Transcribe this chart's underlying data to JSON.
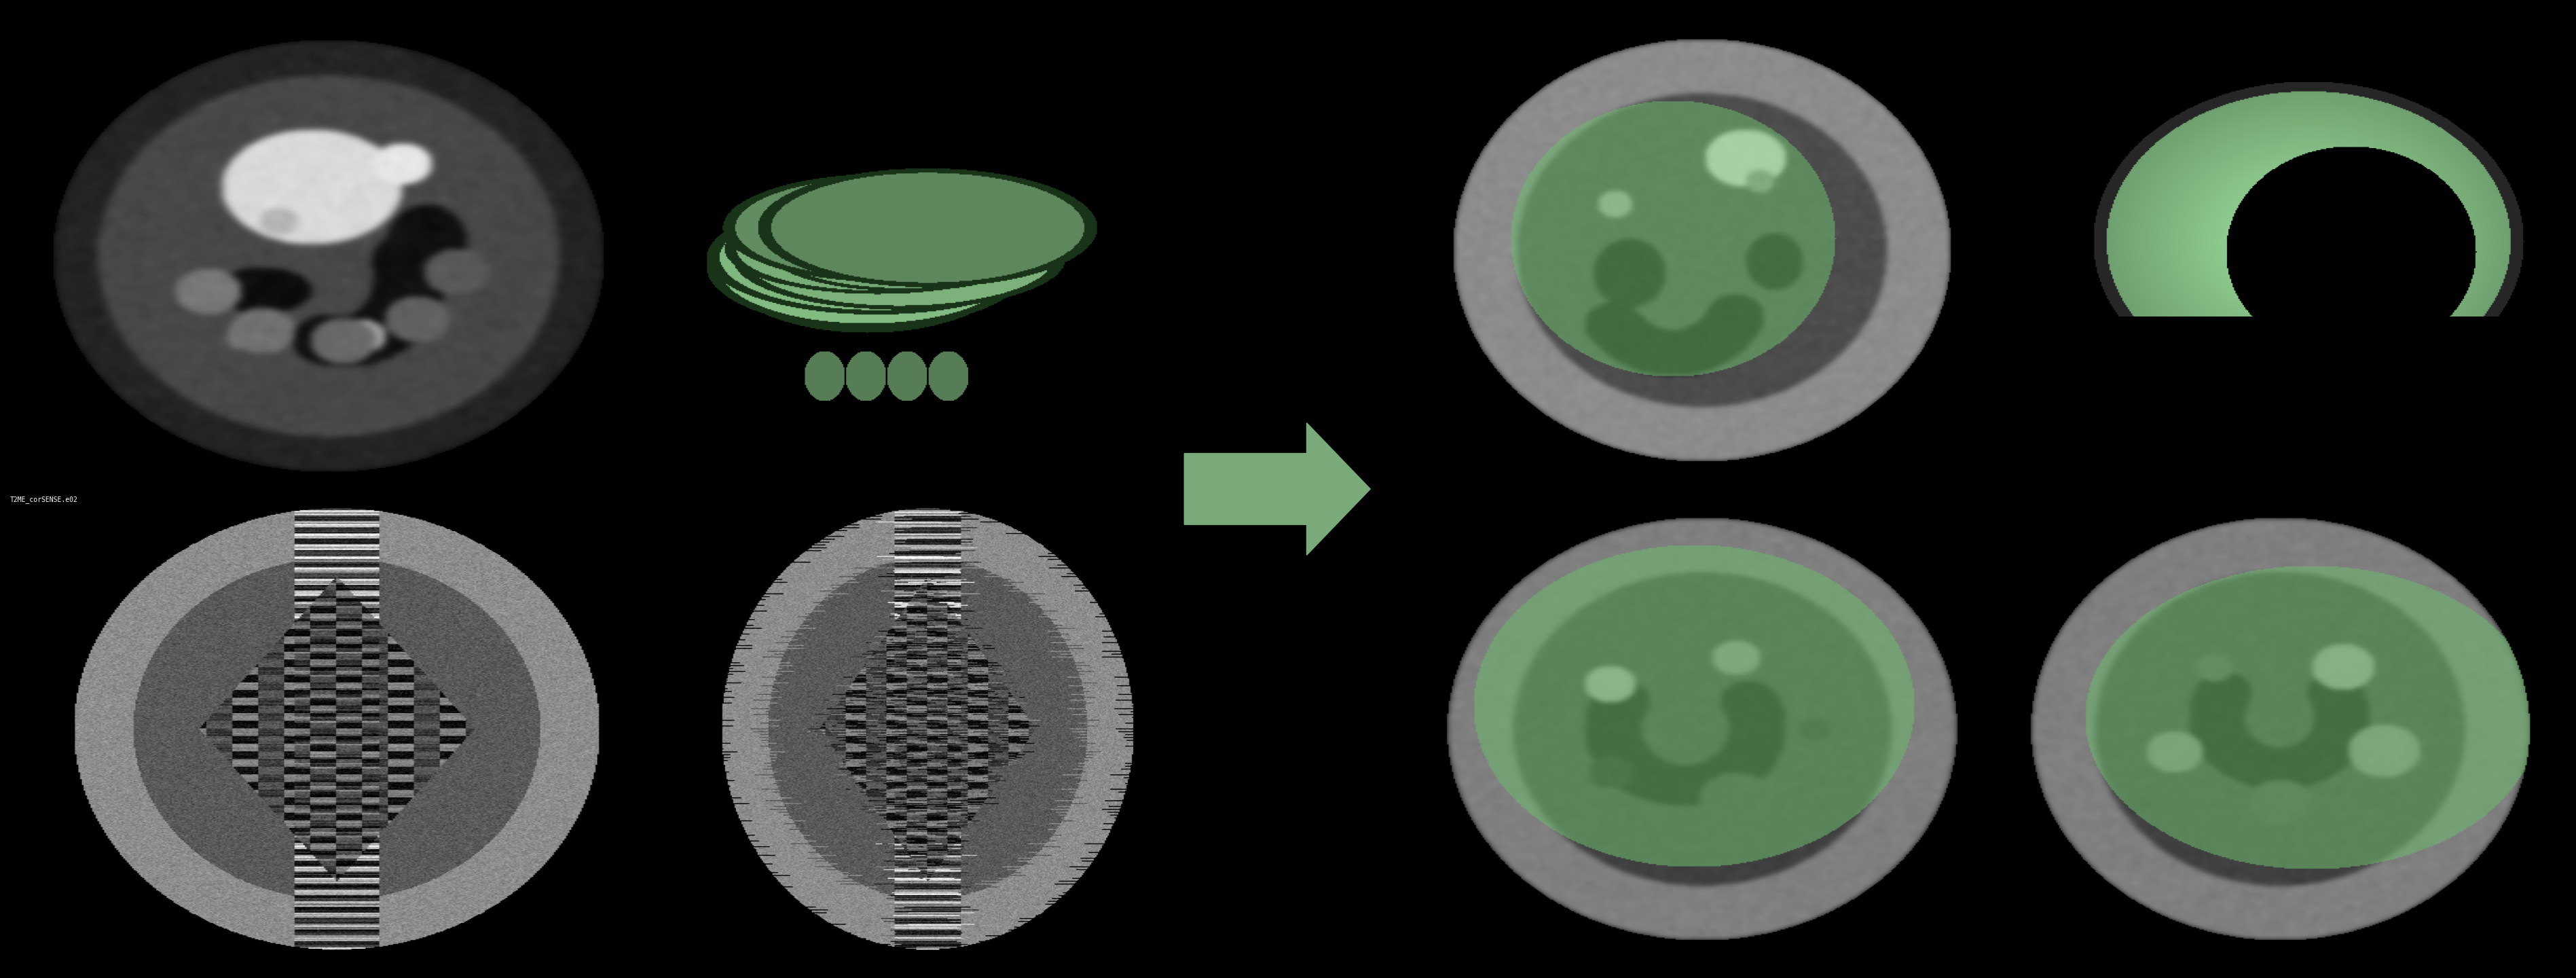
{
  "background_color": "#000000",
  "fig_width": 37.94,
  "fig_height": 14.4,
  "arrow_color": "#7aaa7a",
  "label_text": "T2ME_corSENSE.e02",
  "label_color": "#ffffff",
  "label_fontsize": 7,
  "green_light": "#8dc88d",
  "green_dark": "#5a9e5a",
  "green_mid": "#6eb86e"
}
